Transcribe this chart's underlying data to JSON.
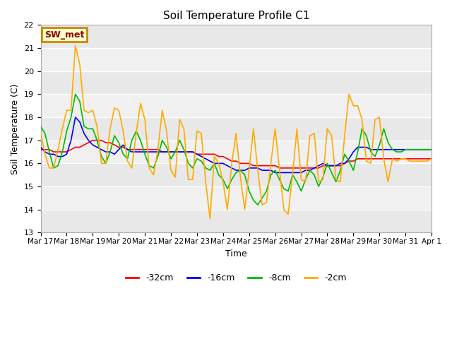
{
  "title": "Soil Temperature Profile C1",
  "xlabel": "Time",
  "ylabel": "Soil Temperature (C)",
  "ylim": [
    13.0,
    22.0
  ],
  "yticks": [
    13.0,
    14.0,
    15.0,
    16.0,
    17.0,
    18.0,
    19.0,
    20.0,
    21.0,
    22.0
  ],
  "background_color": "#ffffff",
  "plot_bg_color": "#ffffff",
  "band_color_light": "#e8e8e8",
  "band_color_white": "#f8f8f8",
  "annotation_label": "SW_met",
  "annotation_bg": "#ffffcc",
  "annotation_border": "#cc8800",
  "annotation_text_color": "#880000",
  "series": [
    {
      "label": "-32cm",
      "color": "#ff0000",
      "x": [
        0,
        1,
        2,
        3,
        4,
        5,
        6,
        7,
        8,
        9,
        10,
        11,
        12,
        13,
        14,
        15,
        16,
        17,
        18,
        19,
        20,
        21,
        22,
        23,
        24,
        25,
        26,
        27,
        28,
        29,
        30,
        31,
        32,
        33,
        34,
        35,
        36,
        37,
        38,
        39,
        40,
        41,
        42,
        43,
        44,
        45,
        46,
        47,
        48,
        49,
        50,
        51,
        52,
        53,
        54,
        55,
        56,
        57,
        58,
        59,
        60,
        61,
        62,
        63,
        64,
        65,
        66,
        67,
        68,
        69,
        70,
        71,
        72,
        73,
        74,
        75,
        76,
        77,
        78,
        79,
        80,
        81,
        82,
        83,
        84,
        85,
        86,
        87,
        88,
        89,
        90
      ],
      "y": [
        16.6,
        16.6,
        16.6,
        16.5,
        16.5,
        16.5,
        16.5,
        16.6,
        16.7,
        16.7,
        16.8,
        16.9,
        17.0,
        17.0,
        17.0,
        16.9,
        16.9,
        16.8,
        16.7,
        16.7,
        16.6,
        16.6,
        16.6,
        16.6,
        16.6,
        16.6,
        16.6,
        16.6,
        16.5,
        16.5,
        16.5,
        16.5,
        16.5,
        16.5,
        16.5,
        16.5,
        16.4,
        16.4,
        16.4,
        16.4,
        16.4,
        16.3,
        16.3,
        16.2,
        16.1,
        16.1,
        16.0,
        16.0,
        16.0,
        15.9,
        15.9,
        15.9,
        15.9,
        15.9,
        15.9,
        15.8,
        15.8,
        15.8,
        15.8,
        15.8,
        15.8,
        15.8,
        15.8,
        15.8,
        15.8,
        15.9,
        15.9,
        15.9,
        15.9,
        15.9,
        16.0,
        16.1,
        16.1,
        16.2,
        16.2,
        16.2,
        16.2,
        16.2,
        16.2,
        16.2,
        16.2,
        16.2,
        16.2,
        16.2,
        16.2,
        16.2,
        16.2,
        16.2,
        16.2,
        16.2,
        16.2
      ]
    },
    {
      "label": "-16cm",
      "color": "#0000ff",
      "x": [
        0,
        1,
        2,
        3,
        4,
        5,
        6,
        7,
        8,
        9,
        10,
        11,
        12,
        13,
        14,
        15,
        16,
        17,
        18,
        19,
        20,
        21,
        22,
        23,
        24,
        25,
        26,
        27,
        28,
        29,
        30,
        31,
        32,
        33,
        34,
        35,
        36,
        37,
        38,
        39,
        40,
        41,
        42,
        43,
        44,
        45,
        46,
        47,
        48,
        49,
        50,
        51,
        52,
        53,
        54,
        55,
        56,
        57,
        58,
        59,
        60,
        61,
        62,
        63,
        64,
        65,
        66,
        67,
        68,
        69,
        70,
        71,
        72,
        73,
        74,
        75,
        76,
        77,
        78,
        79,
        80,
        81,
        82,
        83,
        84,
        85,
        86,
        87,
        88,
        89,
        90
      ],
      "y": [
        16.7,
        16.5,
        16.4,
        16.4,
        16.3,
        16.3,
        16.4,
        17.0,
        18.0,
        17.8,
        17.3,
        17.0,
        16.8,
        16.7,
        16.6,
        16.5,
        16.5,
        16.4,
        16.6,
        16.8,
        16.6,
        16.5,
        16.5,
        16.5,
        16.5,
        16.5,
        16.5,
        16.5,
        16.5,
        16.5,
        16.5,
        16.5,
        16.5,
        16.5,
        16.5,
        16.5,
        16.4,
        16.3,
        16.2,
        16.1,
        16.0,
        16.0,
        16.0,
        15.9,
        15.8,
        15.7,
        15.7,
        15.7,
        15.8,
        15.8,
        15.8,
        15.7,
        15.7,
        15.7,
        15.6,
        15.6,
        15.6,
        15.6,
        15.6,
        15.6,
        15.6,
        15.7,
        15.7,
        15.8,
        15.9,
        16.0,
        15.9,
        15.9,
        15.9,
        16.0,
        16.0,
        16.2,
        16.5,
        16.7,
        16.7,
        16.7,
        16.6,
        16.6,
        16.6,
        16.6,
        16.6,
        16.6,
        16.6,
        16.6,
        16.6,
        16.6,
        16.6,
        16.6,
        16.6,
        16.6,
        16.6
      ]
    },
    {
      "label": "-8cm",
      "color": "#00bb00",
      "x": [
        0,
        1,
        2,
        3,
        4,
        5,
        6,
        7,
        8,
        9,
        10,
        11,
        12,
        13,
        14,
        15,
        16,
        17,
        18,
        19,
        20,
        21,
        22,
        23,
        24,
        25,
        26,
        27,
        28,
        29,
        30,
        31,
        32,
        33,
        34,
        35,
        36,
        37,
        38,
        39,
        40,
        41,
        42,
        43,
        44,
        45,
        46,
        47,
        48,
        49,
        50,
        51,
        52,
        53,
        54,
        55,
        56,
        57,
        58,
        59,
        60,
        61,
        62,
        63,
        64,
        65,
        66,
        67,
        68,
        69,
        70,
        71,
        72,
        73,
        74,
        75,
        76,
        77,
        78,
        79,
        80,
        81,
        82,
        83,
        84,
        85,
        86,
        87,
        88,
        89,
        90
      ],
      "y": [
        17.6,
        17.3,
        16.5,
        15.8,
        15.9,
        16.5,
        17.4,
        18.0,
        19.0,
        18.7,
        17.6,
        17.5,
        17.5,
        17.0,
        16.3,
        16.0,
        16.5,
        17.2,
        16.9,
        16.4,
        16.2,
        17.0,
        17.4,
        17.0,
        16.4,
        15.9,
        15.8,
        16.3,
        17.0,
        16.7,
        16.2,
        16.5,
        17.0,
        16.6,
        16.0,
        15.8,
        16.2,
        16.1,
        15.8,
        15.7,
        16.0,
        15.5,
        15.3,
        14.9,
        15.3,
        15.6,
        15.7,
        15.5,
        14.8,
        14.4,
        14.2,
        14.5,
        14.8,
        15.5,
        15.7,
        15.3,
        14.9,
        14.8,
        15.5,
        15.2,
        14.8,
        15.3,
        15.7,
        15.5,
        15.0,
        15.4,
        16.0,
        15.6,
        15.2,
        15.7,
        16.4,
        16.1,
        15.7,
        16.5,
        17.5,
        17.2,
        16.5,
        16.3,
        16.8,
        17.5,
        16.9,
        16.6,
        16.5,
        16.5,
        16.6,
        16.6,
        16.6,
        16.6,
        16.6,
        16.6,
        16.6
      ]
    },
    {
      "label": "-2cm",
      "color": "#ffaa00",
      "x": [
        0,
        1,
        2,
        3,
        4,
        5,
        6,
        7,
        8,
        9,
        10,
        11,
        12,
        13,
        14,
        15,
        16,
        17,
        18,
        19,
        20,
        21,
        22,
        23,
        24,
        25,
        26,
        27,
        28,
        29,
        30,
        31,
        32,
        33,
        34,
        35,
        36,
        37,
        38,
        39,
        40,
        41,
        42,
        43,
        44,
        45,
        46,
        47,
        48,
        49,
        50,
        51,
        52,
        53,
        54,
        55,
        56,
        57,
        58,
        59,
        60,
        61,
        62,
        63,
        64,
        65,
        66,
        67,
        68,
        69,
        70,
        71,
        72,
        73,
        74,
        75,
        76,
        77,
        78,
        79,
        80,
        81,
        82,
        83,
        84,
        85,
        86,
        87,
        88,
        89,
        90
      ],
      "y": [
        17.3,
        16.4,
        15.8,
        15.8,
        16.6,
        17.5,
        18.3,
        18.3,
        21.1,
        20.3,
        18.3,
        18.2,
        18.3,
        17.6,
        16.0,
        16.0,
        17.5,
        18.4,
        18.3,
        17.4,
        16.1,
        15.8,
        17.3,
        18.6,
        17.9,
        15.8,
        15.5,
        16.6,
        18.3,
        17.4,
        15.7,
        15.4,
        17.9,
        17.5,
        15.3,
        15.3,
        17.4,
        17.3,
        15.2,
        13.6,
        16.3,
        16.0,
        15.2,
        14.0,
        16.0,
        17.3,
        15.4,
        14.0,
        15.7,
        17.5,
        15.7,
        14.2,
        14.3,
        16.0,
        17.5,
        15.7,
        14.0,
        13.8,
        15.5,
        17.5,
        15.3,
        15.2,
        17.2,
        17.3,
        15.2,
        15.3,
        17.5,
        17.2,
        15.3,
        15.2,
        17.2,
        19.0,
        18.5,
        18.5,
        17.9,
        16.1,
        16.0,
        17.9,
        18.0,
        16.2,
        15.2,
        16.2,
        16.1,
        16.2,
        16.2,
        16.1,
        16.1,
        16.1,
        16.1,
        16.1,
        16.2
      ]
    }
  ],
  "xtick_labels": [
    "Mar 17",
    "Mar 18",
    "Mar 19",
    "Mar 20",
    "Mar 21",
    "Mar 22",
    "Mar 23",
    "Mar 24",
    "Mar 25",
    "Mar 26",
    "Mar 27",
    "Mar 28",
    "Mar 29",
    "Mar 30",
    "Mar 31",
    "Apr 1"
  ],
  "xtick_positions": [
    0,
    6,
    12,
    18,
    24,
    30,
    36,
    42,
    48,
    54,
    60,
    66,
    72,
    78,
    84,
    90
  ]
}
